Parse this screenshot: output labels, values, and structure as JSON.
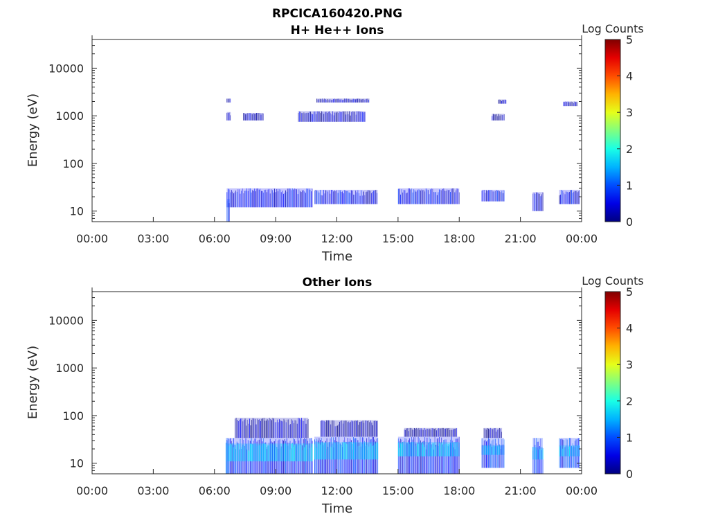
{
  "figure_title": "RPCICA160420.PNG",
  "chart_data": [
    {
      "type": "heatmap",
      "title": "H+ He++ Ions",
      "xlabel": "Time",
      "ylabel": "Energy (eV)",
      "yscale": "log",
      "ylim": [
        6,
        40000
      ],
      "ytick_values": [
        10,
        100,
        1000,
        10000
      ],
      "ytick_labels": [
        "10",
        "100",
        "1000",
        "10000"
      ],
      "xlim": [
        0,
        24
      ],
      "xtick_values": [
        0,
        3,
        6,
        9,
        12,
        15,
        18,
        21,
        24
      ],
      "xtick_labels": [
        "00:00",
        "03:00",
        "06:00",
        "09:00",
        "12:00",
        "15:00",
        "18:00",
        "21:00",
        "00:00"
      ],
      "colorbar": {
        "label": "Log Counts",
        "range": [
          0,
          5
        ],
        "tick_labels": [
          "0",
          "1",
          "2",
          "3",
          "4",
          "5"
        ],
        "colormap": "jet"
      },
      "bands": [
        {
          "t_start": 6.6,
          "t_end": 10.8,
          "e_low": 12,
          "e_high": 30,
          "log_counts": 0.6
        },
        {
          "t_start": 10.9,
          "t_end": 13.3,
          "e_low": 14,
          "e_high": 28,
          "log_counts": 0.6
        },
        {
          "t_start": 13.3,
          "t_end": 14.0,
          "e_low": 14,
          "e_high": 28,
          "log_counts": 0.4
        },
        {
          "t_start": 15.0,
          "t_end": 18.0,
          "e_low": 14,
          "e_high": 30,
          "log_counts": 0.55
        },
        {
          "t_start": 19.1,
          "t_end": 20.2,
          "e_low": 16,
          "e_high": 28,
          "log_counts": 0.55
        },
        {
          "t_start": 21.6,
          "t_end": 22.1,
          "e_low": 10,
          "e_high": 25,
          "log_counts": 0.5
        },
        {
          "t_start": 22.9,
          "t_end": 23.9,
          "e_low": 14,
          "e_high": 28,
          "log_counts": 0.5
        },
        {
          "t_start": 6.6,
          "t_end": 6.75,
          "e_low": 6,
          "e_high": 18,
          "log_counts": 0.8
        },
        {
          "t_start": 6.6,
          "t_end": 6.8,
          "e_low": 800,
          "e_high": 1200,
          "log_counts": 0.3
        },
        {
          "t_start": 7.4,
          "t_end": 8.4,
          "e_low": 800,
          "e_high": 1150,
          "log_counts": 0.3
        },
        {
          "t_start": 10.1,
          "t_end": 13.4,
          "e_low": 750,
          "e_high": 1250,
          "log_counts": 0.3
        },
        {
          "t_start": 11.0,
          "t_end": 13.6,
          "e_low": 1900,
          "e_high": 2300,
          "log_counts": 0.25
        },
        {
          "t_start": 6.6,
          "t_end": 6.8,
          "e_low": 1900,
          "e_high": 2300,
          "log_counts": 0.25
        },
        {
          "t_start": 19.6,
          "t_end": 20.2,
          "e_low": 800,
          "e_high": 1100,
          "log_counts": 0.25
        },
        {
          "t_start": 19.9,
          "t_end": 20.3,
          "e_low": 1800,
          "e_high": 2200,
          "log_counts": 0.25
        },
        {
          "t_start": 23.1,
          "t_end": 23.8,
          "e_low": 1600,
          "e_high": 2000,
          "log_counts": 0.3
        }
      ]
    },
    {
      "type": "heatmap",
      "title": "Other Ions",
      "xlabel": "Time",
      "ylabel": "Energy (eV)",
      "yscale": "log",
      "ylim": [
        6,
        40000
      ],
      "ytick_values": [
        10,
        100,
        1000,
        10000
      ],
      "ytick_labels": [
        "10",
        "100",
        "1000",
        "10000"
      ],
      "xlim": [
        0,
        24
      ],
      "xtick_values": [
        0,
        3,
        6,
        9,
        12,
        15,
        18,
        21,
        24
      ],
      "xtick_labels": [
        "00:00",
        "03:00",
        "06:00",
        "09:00",
        "12:00",
        "15:00",
        "18:00",
        "21:00",
        "00:00"
      ],
      "colorbar": {
        "label": "Log Counts",
        "range": [
          0,
          5
        ],
        "tick_labels": [
          "0",
          "1",
          "2",
          "3",
          "4",
          "5"
        ],
        "colormap": "jet"
      },
      "bands": [
        {
          "t_start": 6.6,
          "t_end": 10.8,
          "e_low": 6,
          "e_high": 34,
          "log_counts": 0.7
        },
        {
          "t_start": 6.6,
          "t_end": 10.8,
          "e_low": 11,
          "e_high": 26,
          "log_counts": 1.6
        },
        {
          "t_start": 7.0,
          "t_end": 10.6,
          "e_low": 34,
          "e_high": 90,
          "log_counts": 0.25
        },
        {
          "t_start": 10.9,
          "t_end": 14.0,
          "e_low": 6,
          "e_high": 36,
          "log_counts": 0.7
        },
        {
          "t_start": 10.9,
          "t_end": 14.0,
          "e_low": 12,
          "e_high": 28,
          "log_counts": 1.6
        },
        {
          "t_start": 11.2,
          "t_end": 14.0,
          "e_low": 36,
          "e_high": 80,
          "log_counts": 0.25
        },
        {
          "t_start": 15.0,
          "t_end": 18.0,
          "e_low": 6,
          "e_high": 36,
          "log_counts": 0.7
        },
        {
          "t_start": 15.0,
          "t_end": 18.0,
          "e_low": 14,
          "e_high": 28,
          "log_counts": 1.5
        },
        {
          "t_start": 15.3,
          "t_end": 17.9,
          "e_low": 36,
          "e_high": 55,
          "log_counts": 0.2
        },
        {
          "t_start": 19.1,
          "t_end": 20.2,
          "e_low": 8,
          "e_high": 34,
          "log_counts": 0.8
        },
        {
          "t_start": 19.1,
          "t_end": 20.2,
          "e_low": 15,
          "e_high": 24,
          "log_counts": 1.4
        },
        {
          "t_start": 19.2,
          "t_end": 20.1,
          "e_low": 34,
          "e_high": 55,
          "log_counts": 0.2
        },
        {
          "t_start": 21.6,
          "t_end": 22.1,
          "e_low": 6,
          "e_high": 34,
          "log_counts": 0.9
        },
        {
          "t_start": 21.6,
          "t_end": 22.1,
          "e_low": 12,
          "e_high": 22,
          "log_counts": 1.4
        },
        {
          "t_start": 22.9,
          "t_end": 23.9,
          "e_low": 8,
          "e_high": 34,
          "log_counts": 0.8
        },
        {
          "t_start": 22.9,
          "t_end": 23.9,
          "e_low": 14,
          "e_high": 24,
          "log_counts": 1.5
        },
        {
          "t_start": 6.55,
          "t_end": 6.7,
          "e_low": 6,
          "e_high": 34,
          "log_counts": 1.1
        }
      ]
    }
  ]
}
